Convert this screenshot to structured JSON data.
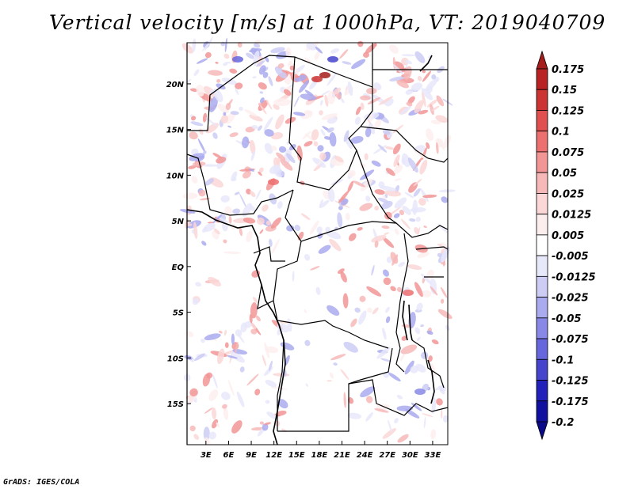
{
  "title": "Vertical velocity [m/s] at 1000hPa, VT: 2019040709",
  "footer": "GrADS: IGES/COLA",
  "map": {
    "lat_labels": [
      "20N",
      "15N",
      "10N",
      "5N",
      "EQ",
      "5S",
      "10S",
      "15S"
    ],
    "lat_values": [
      20,
      15,
      10,
      5,
      0,
      -5,
      -10,
      -15
    ],
    "lon_labels": [
      "3E",
      "6E",
      "9E",
      "12E",
      "15E",
      "18E",
      "21E",
      "24E",
      "27E",
      "30E",
      "33E"
    ],
    "lon_values": [
      3,
      6,
      9,
      12,
      15,
      18,
      21,
      24,
      27,
      30,
      33
    ],
    "lon_range": [
      0.5,
      35
    ],
    "lat_range": [
      -19.5,
      24.5
    ]
  },
  "colorbar": {
    "labels": [
      "0.175",
      "0.15",
      "0.125",
      "0.1",
      "0.075",
      "0.05",
      "0.025",
      "0.0125",
      "0.005",
      "-0.005",
      "-0.0125",
      "-0.025",
      "-0.05",
      "-0.075",
      "-0.1",
      "-0.125",
      "-0.175",
      "-0.2"
    ],
    "colors": [
      "#a51c1c",
      "#b82323",
      "#cc3333",
      "#e05050",
      "#ec7070",
      "#f29595",
      "#f7b8b8",
      "#fbd7d7",
      "#fdeeee",
      "#ffffff",
      "#e8e8fb",
      "#ccccf5",
      "#aaaaee",
      "#8888e6",
      "#6666dd",
      "#4444cc",
      "#2222bb",
      "#1111a0",
      "#0a0a88"
    ]
  }
}
